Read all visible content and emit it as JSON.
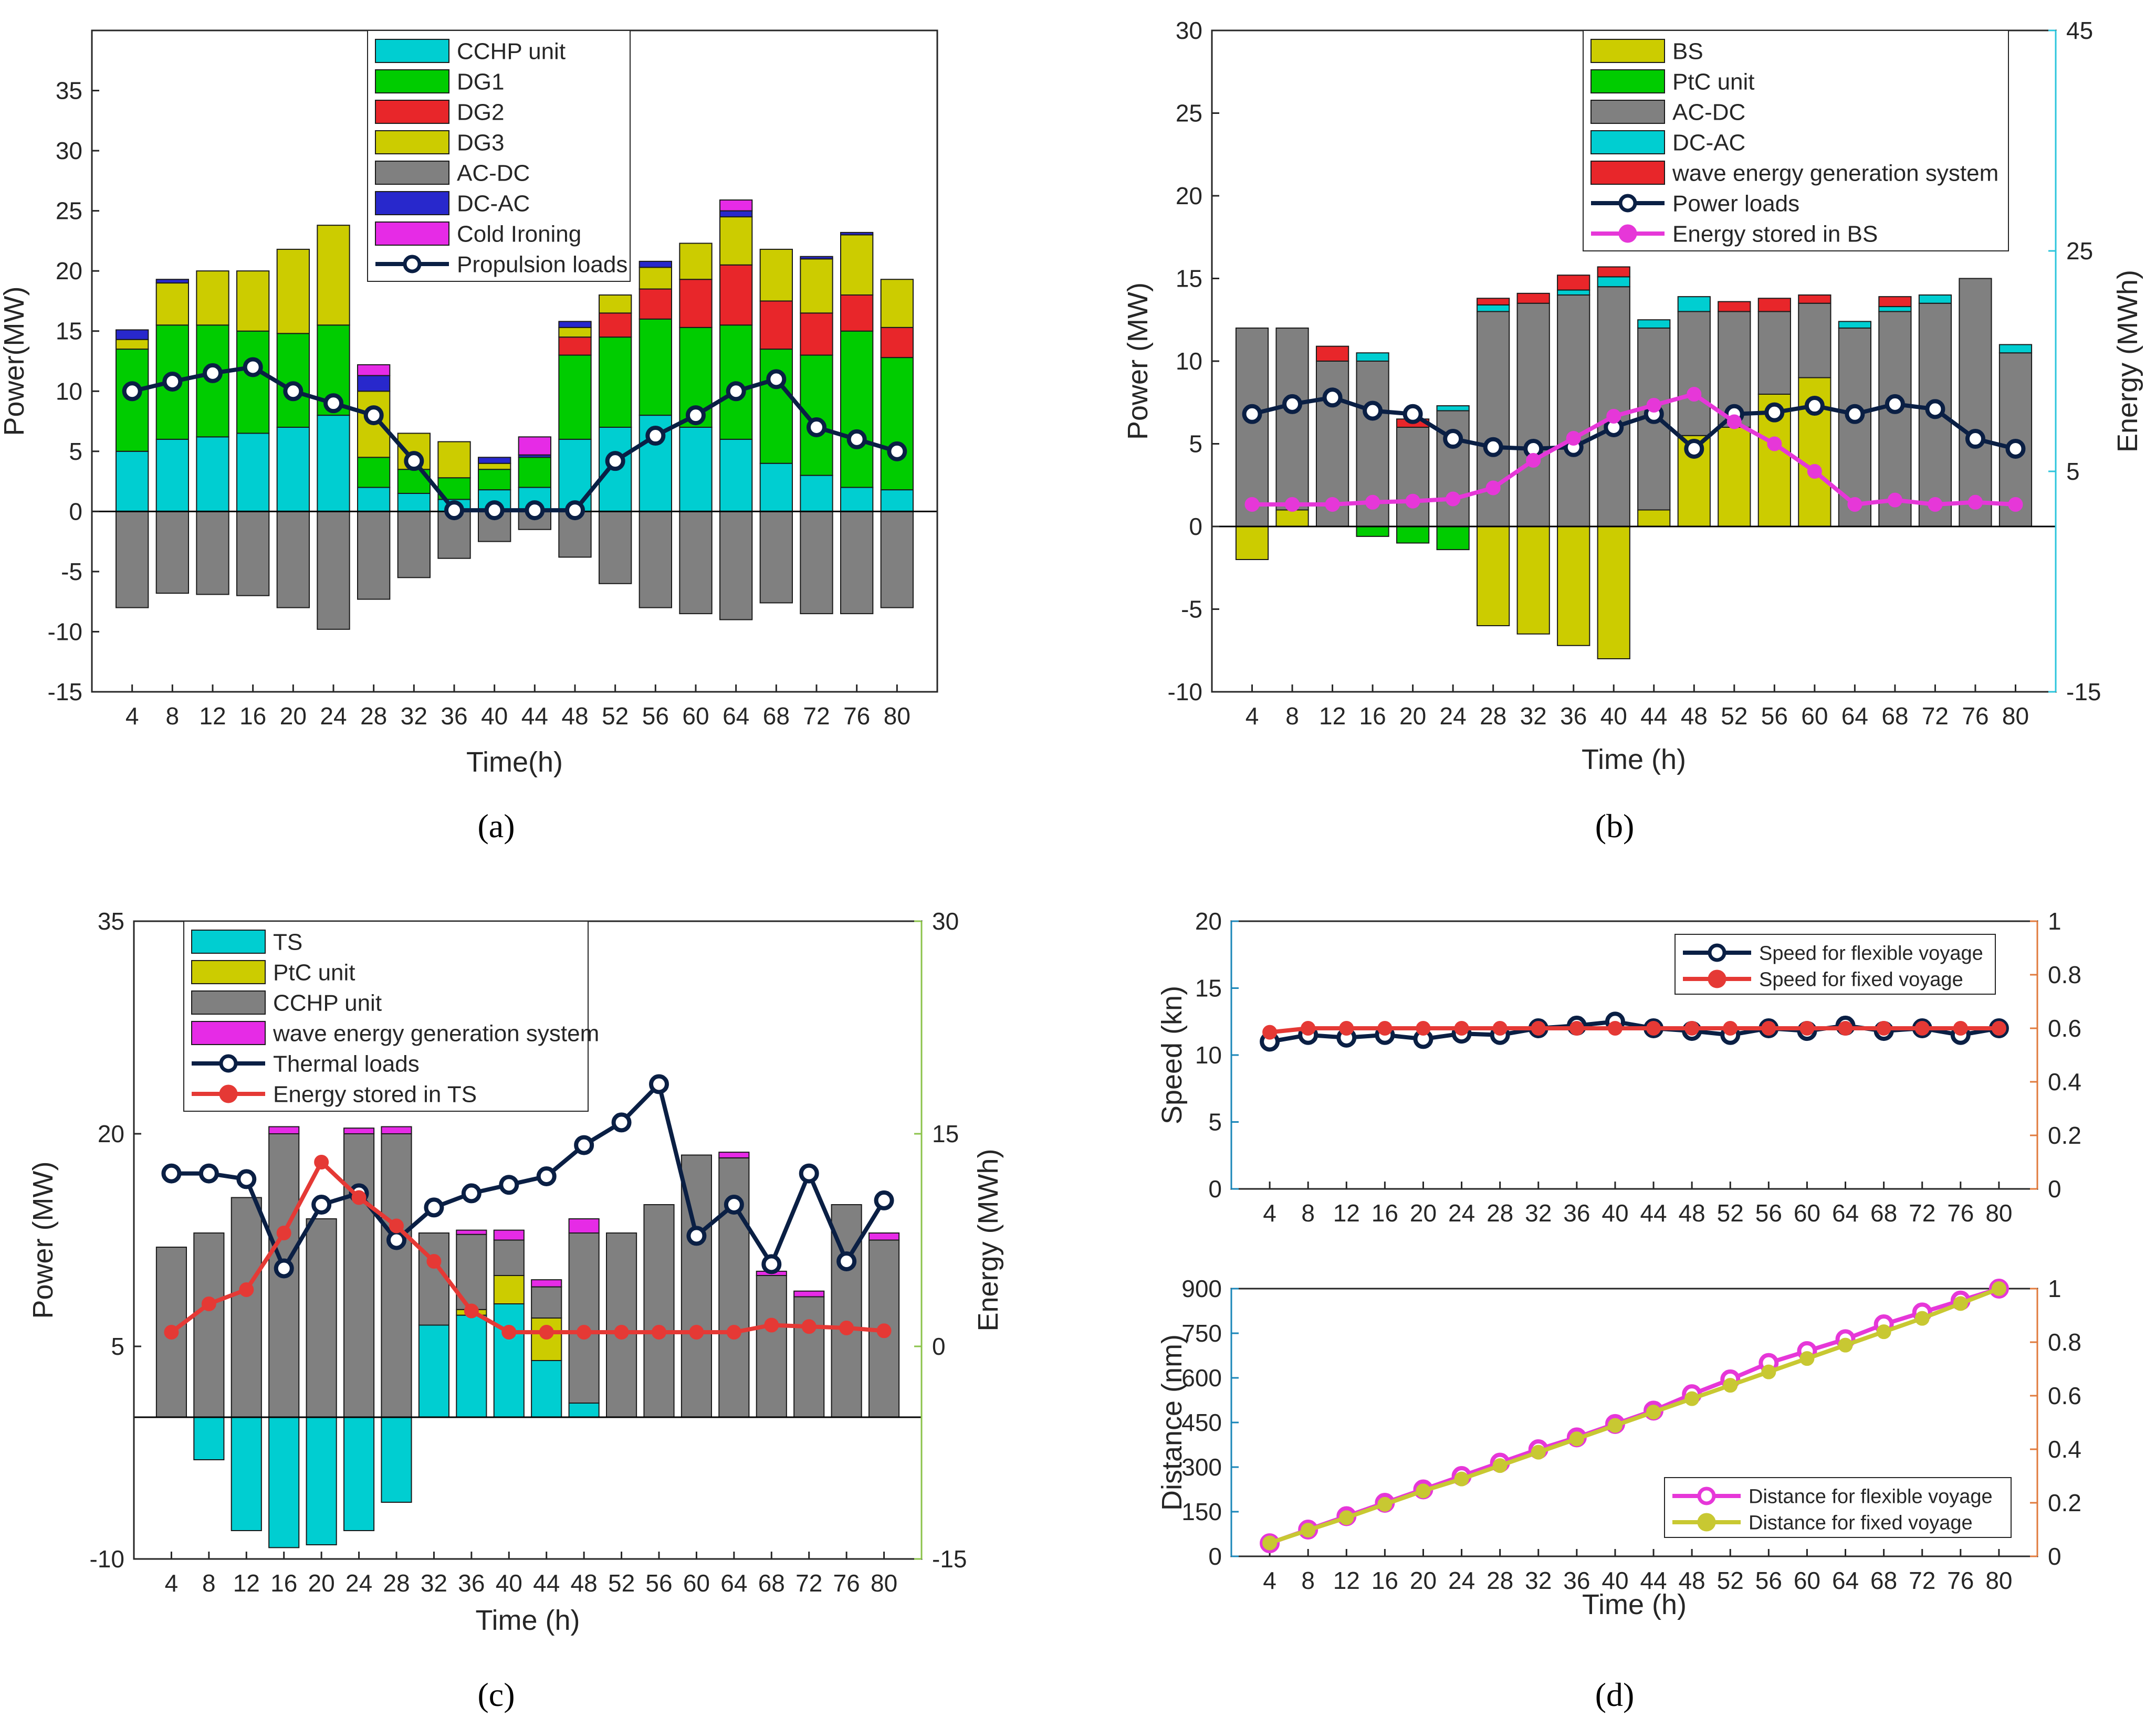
{
  "panel_labels": [
    "(a)",
    "(b)",
    "(c)",
    "(d)"
  ],
  "colors": {
    "cyan": "#00CED1",
    "green": "#00CC00",
    "red": "#E8262A",
    "olive": "#CCCC00",
    "gray": "#808080",
    "blue": "#2828CC",
    "magenta": "#E62BE6",
    "navy": "#0A1F44",
    "pink": "#E637D8",
    "lineRed": "#E53935",
    "yellowLine": "#C8C832",
    "axisCyan": "#2DC5DC",
    "axisGreen": "#8BC34A",
    "axisBlue": "#1A86B8",
    "axisOrange": "#E07A3C"
  },
  "chart_data": [
    {
      "id": "a",
      "type": "stacked-bar+line",
      "title": "",
      "xlabel": "Time(h)",
      "ylabel": "Power(MW)",
      "x": [
        4,
        8,
        12,
        16,
        20,
        24,
        28,
        32,
        36,
        40,
        44,
        48,
        52,
        56,
        60,
        64,
        68,
        72,
        76,
        80
      ],
      "ylim": [
        -15,
        40
      ],
      "yticks": [
        -15,
        -10,
        -5,
        0,
        5,
        10,
        15,
        20,
        25,
        30,
        35
      ],
      "legend": [
        "CCHP unit",
        "DG1",
        "DG2",
        "DG3",
        "AC-DC",
        "DC-AC",
        "Cold Ironing",
        "Propulsion loads"
      ],
      "series": [
        {
          "name": "CCHP unit",
          "color": "cyan",
          "values": [
            5,
            6,
            6.2,
            6.5,
            7,
            8,
            2,
            1.5,
            1,
            1.8,
            2,
            6,
            7,
            8,
            7,
            6,
            4,
            3,
            2,
            1.8
          ]
        },
        {
          "name": "DG1",
          "color": "green",
          "values": [
            8.5,
            9.5,
            9.3,
            8.5,
            7.8,
            7.5,
            2.5,
            2,
            1.8,
            1.7,
            2.5,
            7,
            7.5,
            8,
            8.3,
            9.5,
            9.5,
            10,
            13,
            11
          ]
        },
        {
          "name": "DG2",
          "color": "red",
          "values": [
            0,
            0,
            0,
            0,
            0,
            0,
            0,
            0,
            0,
            0,
            0,
            1.5,
            2,
            2.5,
            4,
            5,
            4,
            3.5,
            3,
            2.5
          ]
        },
        {
          "name": "DG3",
          "color": "olive",
          "values": [
            0.8,
            3.5,
            4.5,
            5,
            7,
            8.3,
            5.5,
            3,
            3,
            0.5,
            0,
            0.8,
            1.5,
            1.8,
            3,
            4,
            4.3,
            4.5,
            5,
            4
          ]
        },
        {
          "name": "AC-DC",
          "color": "gray",
          "values": [
            -8,
            -6.8,
            -6.9,
            -7,
            -8,
            -9.8,
            -7.3,
            -5.5,
            -3.9,
            -2.5,
            -1.5,
            -3.8,
            -6,
            -8,
            -8.5,
            -9,
            -7.6,
            -8.5,
            -8.5,
            -8
          ]
        },
        {
          "name": "DC-AC",
          "color": "blue",
          "values": [
            0.8,
            0.3,
            0,
            0,
            0,
            0,
            1.3,
            0,
            0,
            0.5,
            0.2,
            0.5,
            0,
            0.5,
            0,
            0.5,
            0,
            0.2,
            0.2,
            0
          ]
        },
        {
          "name": "Cold Ironing",
          "color": "magenta",
          "values": [
            0,
            0,
            0,
            0,
            0,
            0,
            0.9,
            0,
            0,
            0,
            1.5,
            0,
            0,
            0,
            0,
            0.9,
            0,
            0,
            0,
            0
          ]
        }
      ],
      "lines": [
        {
          "name": "Propulsion loads",
          "color": "navy",
          "values": [
            10,
            10.8,
            11.5,
            12,
            10,
            9,
            8,
            4.2,
            0.1,
            0.1,
            0.1,
            0.1,
            4.2,
            6.3,
            8,
            10,
            11,
            7,
            6,
            5
          ]
        }
      ]
    },
    {
      "id": "b",
      "type": "stacked-bar+line (dual axis)",
      "xlabel": "Time (h)",
      "ylabel": "Power (MW)",
      "ylabel_right": "Energy (MWh)",
      "x": [
        4,
        8,
        12,
        16,
        20,
        24,
        28,
        32,
        36,
        40,
        44,
        48,
        52,
        56,
        60,
        64,
        68,
        72,
        76,
        80
      ],
      "ylim": [
        -10,
        30
      ],
      "ylim_right": [
        -15,
        45
      ],
      "yticks": [
        -10,
        -5,
        0,
        5,
        10,
        15,
        20,
        25,
        30
      ],
      "yticks_right": [
        -15,
        5,
        25,
        45
      ],
      "legend": [
        "BS",
        "PtC unit",
        "AC-DC",
        "DC-AC",
        "wave energy generation system",
        "Power loads",
        "Energy stored in BS"
      ],
      "series": [
        {
          "name": "BS",
          "color": "olive",
          "values": [
            -2,
            1,
            0,
            0,
            0,
            0,
            -6,
            -6.5,
            -7.2,
            -8,
            1,
            5.5,
            6,
            8,
            9,
            0,
            0,
            0,
            0,
            0
          ]
        },
        {
          "name": "PtC unit",
          "color": "green",
          "values": [
            0,
            0,
            0,
            -0.6,
            -1,
            -1.4,
            0,
            0,
            0,
            0,
            0,
            0,
            0,
            0,
            0,
            0,
            0,
            0,
            0,
            0
          ]
        },
        {
          "name": "AC-DC",
          "color": "gray",
          "values": [
            12,
            11,
            10,
            10,
            6,
            7,
            13,
            13.5,
            14,
            14.5,
            11,
            7.5,
            7,
            5,
            4.5,
            12,
            13,
            13.5,
            15,
            10.5
          ]
        },
        {
          "name": "DC-AC",
          "color": "cyan",
          "values": [
            0,
            0,
            0,
            0.5,
            0,
            0.3,
            0.4,
            0,
            0.3,
            0.6,
            0.5,
            0.9,
            0,
            0,
            0,
            0.4,
            0.3,
            0.5,
            0,
            0.5
          ]
        },
        {
          "name": "wave energy generation system",
          "color": "red",
          "values": [
            0,
            0,
            0.9,
            0,
            0.5,
            0,
            0.4,
            0.6,
            0.9,
            0.6,
            0,
            0,
            0.6,
            0.8,
            0.5,
            0,
            0.6,
            0,
            0,
            0
          ]
        }
      ],
      "lines": [
        {
          "name": "Power loads",
          "axis": "left",
          "color": "navy",
          "values": [
            6.8,
            7.4,
            7.8,
            7,
            6.8,
            5.3,
            4.8,
            4.7,
            4.8,
            6,
            6.8,
            4.7,
            6.8,
            6.9,
            7.3,
            6.8,
            7.4,
            7.1,
            5.3,
            4.7
          ]
        },
        {
          "name": "Energy stored in BS",
          "axis": "right",
          "color": "pink",
          "values": [
            2,
            2,
            2,
            2.2,
            2.3,
            2.5,
            3.5,
            6,
            8,
            10,
            11,
            12,
            9.5,
            7.5,
            5,
            2,
            2.4,
            2,
            2.2,
            2
          ]
        }
      ]
    },
    {
      "id": "c",
      "type": "stacked-bar+line (dual axis)",
      "xlabel": "Time (h)",
      "ylabel": "Power (MW)",
      "ylabel_right": "Energy (MWh)",
      "x": [
        4,
        8,
        12,
        16,
        20,
        24,
        28,
        32,
        36,
        40,
        44,
        48,
        52,
        56,
        60,
        64,
        68,
        72,
        76,
        80
      ],
      "ylim": [
        -10,
        35
      ],
      "ylim_right": [
        -15,
        30
      ],
      "yticks": [
        -10,
        5,
        20,
        35
      ],
      "yticks_right": [
        -15,
        0,
        15,
        30
      ],
      "legend": [
        "TS",
        "PtC unit",
        "CCHP unit",
        "wave energy generation system",
        "Thermal loads",
        "Energy stored in TS"
      ],
      "series": [
        {
          "name": "TS",
          "color": "cyan",
          "values": [
            0,
            -3,
            -8,
            -9.2,
            -9,
            -8,
            -6,
            6.5,
            7.2,
            8,
            4,
            1,
            0,
            0,
            0,
            0,
            0,
            0,
            0,
            0
          ]
        },
        {
          "name": "PtC unit",
          "color": "olive",
          "values": [
            0,
            0,
            0,
            0,
            0,
            0,
            0,
            0,
            0.4,
            2,
            3,
            0,
            0,
            0,
            0,
            0,
            0,
            0,
            0,
            0
          ]
        },
        {
          "name": "CCHP unit",
          "color": "gray",
          "values": [
            12,
            13,
            15.5,
            20,
            14,
            20,
            20,
            6.5,
            5.3,
            2.5,
            2.2,
            12,
            13,
            15,
            18.5,
            18.3,
            10,
            8.5,
            15,
            12.5
          ]
        },
        {
          "name": "wave energy generation system",
          "color": "magenta",
          "values": [
            0,
            0,
            0,
            0.5,
            0,
            0.4,
            0.5,
            0,
            0.3,
            0.7,
            0.5,
            1,
            0,
            0,
            0,
            0.4,
            0.3,
            0.4,
            0,
            0.5
          ]
        }
      ],
      "lines": [
        {
          "name": "Thermal loads",
          "axis": "left",
          "color": "navy",
          "values": [
            17.2,
            17.2,
            16.8,
            10.5,
            15,
            15.8,
            12.5,
            14.8,
            15.8,
            16.4,
            17,
            19.2,
            20.8,
            23.5,
            12.8,
            15,
            10.8,
            17.2,
            11,
            15.3
          ]
        },
        {
          "name": "Energy stored in TS",
          "axis": "right",
          "color": "lineRed",
          "values": [
            1,
            3,
            4,
            8,
            13,
            10.5,
            8.5,
            6,
            2.5,
            1,
            1,
            1,
            1,
            1,
            1,
            1,
            1.5,
            1.4,
            1.3,
            1.1
          ]
        }
      ]
    },
    {
      "id": "d-top",
      "type": "line (dual axis)",
      "xlabel": "",
      "ylabel": "Speed (kn)",
      "x": [
        4,
        8,
        12,
        16,
        20,
        24,
        28,
        32,
        36,
        40,
        44,
        48,
        52,
        56,
        60,
        64,
        68,
        72,
        76,
        80
      ],
      "ylim": [
        0,
        20
      ],
      "ylim_right": [
        0,
        1
      ],
      "yticks": [
        0,
        5,
        10,
        15,
        20
      ],
      "yticks_right": [
        0,
        0.2,
        0.4,
        0.6,
        0.8,
        1
      ],
      "legend": [
        "Speed for flexible voyage",
        "Speed for fixed voyage"
      ],
      "lines": [
        {
          "name": "Speed for flexible voyage",
          "color": "navy",
          "values": [
            11,
            11.5,
            11.3,
            11.5,
            11.2,
            11.6,
            11.5,
            12,
            12.2,
            12.5,
            12,
            11.8,
            11.5,
            12,
            11.8,
            12.2,
            11.8,
            12,
            11.5,
            12
          ]
        },
        {
          "name": "Speed for fixed voyage",
          "color": "lineRed",
          "values": [
            11.7,
            12,
            12,
            12,
            12,
            12,
            12,
            12,
            12,
            12,
            12,
            12,
            12,
            12,
            12,
            12,
            12,
            12,
            12,
            12
          ]
        }
      ]
    },
    {
      "id": "d-bottom",
      "type": "line (dual axis)",
      "xlabel": "Time (h)",
      "ylabel": "Distance (nm)",
      "x": [
        4,
        8,
        12,
        16,
        20,
        24,
        28,
        32,
        36,
        40,
        44,
        48,
        52,
        56,
        60,
        64,
        68,
        72,
        76,
        80
      ],
      "ylim": [
        0,
        900
      ],
      "ylim_right": [
        0,
        1
      ],
      "yticks": [
        0,
        150,
        300,
        450,
        600,
        750,
        900
      ],
      "yticks_right": [
        0,
        0.2,
        0.4,
        0.6,
        0.8,
        1
      ],
      "legend": [
        "Distance for flexible voyage",
        "Distance for fixed voyage"
      ],
      "lines": [
        {
          "name": "Distance for flexible voyage",
          "color": "pink",
          "values": [
            44,
            90,
            135,
            180,
            225,
            270,
            315,
            360,
            400,
            445,
            490,
            545,
            595,
            650,
            690,
            730,
            780,
            820,
            860,
            900
          ]
        },
        {
          "name": "Distance for fixed voyage",
          "color": "yellowLine",
          "values": [
            45,
            88,
            130,
            175,
            220,
            260,
            305,
            350,
            395,
            440,
            485,
            530,
            575,
            620,
            665,
            710,
            755,
            800,
            850,
            900
          ]
        }
      ]
    }
  ]
}
